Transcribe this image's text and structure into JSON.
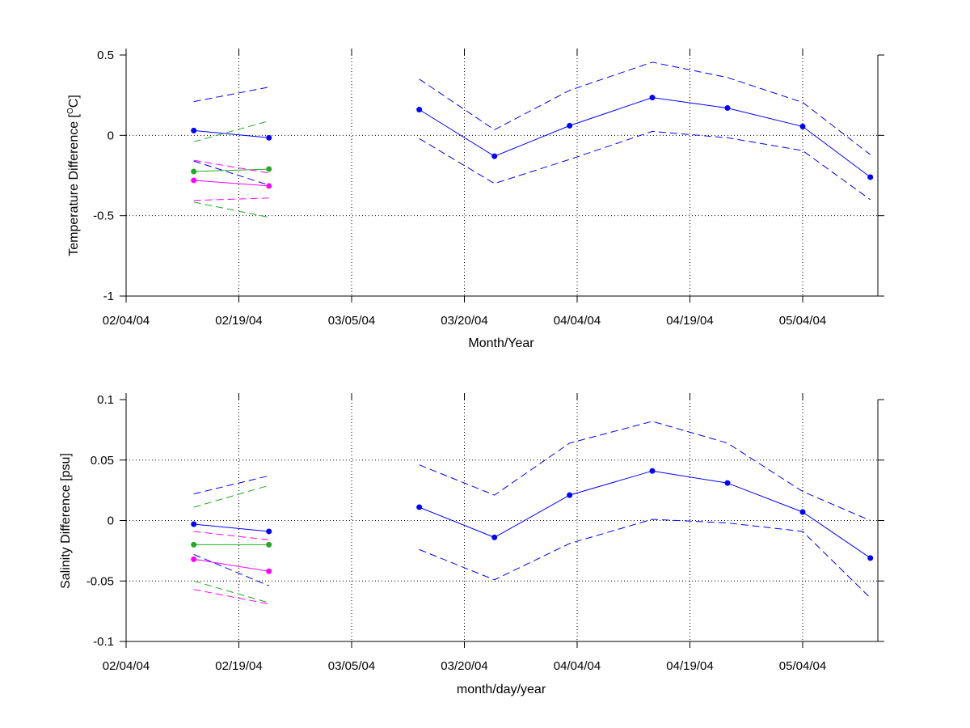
{
  "colors": {
    "blue": "#0000ff",
    "green": "#22aa22",
    "magenta": "#ff00ff",
    "axis": "#000000",
    "grid": "#000000",
    "background": "#ffffff"
  },
  "chart_data": [
    {
      "type": "line",
      "title": "",
      "xlabel": "Month/Year",
      "ylabel_main": "Temperature Difference [",
      "ylabel_sup": "O",
      "ylabel_tail": "C]",
      "xlim": [
        "2004-02-04",
        "2004-05-14"
      ],
      "ylim": [
        -1,
        0.5
      ],
      "grid": true,
      "legend": "none",
      "x_ticks": [
        "2004-02-04",
        "2004-02-19",
        "2004-03-05",
        "2004-03-20",
        "2004-04-04",
        "2004-04-19",
        "2004-05-04"
      ],
      "x_tick_labels": [
        "02/04/04",
        "02/19/04",
        "03/05/04",
        "03/20/04",
        "04/04/04",
        "04/19/04",
        "05/04/04"
      ],
      "y_ticks": [
        -1,
        -0.5,
        0,
        0.5
      ],
      "y_tick_labels": [
        "-1",
        "-0.5",
        "0",
        "0.5"
      ],
      "series": [
        {
          "color": "blue",
          "style": "solid",
          "marker": true,
          "x": [
            "2004-02-13",
            "2004-02-23"
          ],
          "y": [
            0.03,
            -0.015
          ]
        },
        {
          "color": "blue",
          "style": "dashed",
          "marker": false,
          "x": [
            "2004-02-13",
            "2004-02-23"
          ],
          "y": [
            0.21,
            0.3
          ]
        },
        {
          "color": "blue",
          "style": "dashed",
          "marker": false,
          "x": [
            "2004-02-13",
            "2004-02-23"
          ],
          "y": [
            -0.16,
            -0.31
          ]
        },
        {
          "color": "green",
          "style": "solid",
          "marker": true,
          "x": [
            "2004-02-13",
            "2004-02-23"
          ],
          "y": [
            -0.225,
            -0.21
          ]
        },
        {
          "color": "green",
          "style": "dashed",
          "marker": false,
          "x": [
            "2004-02-13",
            "2004-02-23"
          ],
          "y": [
            -0.04,
            0.09
          ]
        },
        {
          "color": "green",
          "style": "dashed",
          "marker": false,
          "x": [
            "2004-02-13",
            "2004-02-23"
          ],
          "y": [
            -0.415,
            -0.51
          ]
        },
        {
          "color": "magenta",
          "style": "solid",
          "marker": true,
          "x": [
            "2004-02-13",
            "2004-02-23"
          ],
          "y": [
            -0.28,
            -0.315
          ]
        },
        {
          "color": "magenta",
          "style": "dashed",
          "marker": false,
          "x": [
            "2004-02-13",
            "2004-02-23"
          ],
          "y": [
            -0.155,
            -0.235
          ]
        },
        {
          "color": "magenta",
          "style": "dashed",
          "marker": false,
          "x": [
            "2004-02-13",
            "2004-02-23"
          ],
          "y": [
            -0.405,
            -0.39
          ]
        },
        {
          "color": "blue",
          "style": "solid",
          "marker": true,
          "x": [
            "2004-03-14",
            "2004-03-24",
            "2004-04-03",
            "2004-04-14",
            "2004-04-24",
            "2004-05-04",
            "2004-05-13"
          ],
          "y": [
            0.16,
            -0.13,
            0.06,
            0.235,
            0.17,
            0.055,
            -0.26
          ]
        },
        {
          "color": "blue",
          "style": "dashed",
          "marker": false,
          "x": [
            "2004-03-14",
            "2004-03-24",
            "2004-04-03",
            "2004-04-14",
            "2004-04-24",
            "2004-05-04",
            "2004-05-13"
          ],
          "y": [
            0.35,
            0.035,
            0.28,
            0.455,
            0.36,
            0.205,
            -0.12
          ]
        },
        {
          "color": "blue",
          "style": "dashed",
          "marker": false,
          "x": [
            "2004-03-14",
            "2004-03-24",
            "2004-04-03",
            "2004-04-14",
            "2004-04-24",
            "2004-05-04",
            "2004-05-13"
          ],
          "y": [
            -0.02,
            -0.3,
            -0.15,
            0.025,
            -0.015,
            -0.095,
            -0.4
          ]
        }
      ]
    },
    {
      "type": "line",
      "title": "",
      "xlabel": "month/day/year",
      "ylabel_main": "Salinity Difference [psu]",
      "ylabel_sup": "",
      "ylabel_tail": "",
      "xlim": [
        "2004-02-04",
        "2004-05-14"
      ],
      "ylim": [
        -0.1,
        0.1
      ],
      "grid": true,
      "legend": "none",
      "x_ticks": [
        "2004-02-04",
        "2004-02-19",
        "2004-03-05",
        "2004-03-20",
        "2004-04-04",
        "2004-04-19",
        "2004-05-04"
      ],
      "x_tick_labels": [
        "02/04/04",
        "02/19/04",
        "03/05/04",
        "03/20/04",
        "04/04/04",
        "04/19/04",
        "05/04/04"
      ],
      "y_ticks": [
        -0.1,
        -0.05,
        0,
        0.05,
        0.1
      ],
      "y_tick_labels": [
        "-0.1",
        "-0.05",
        "0",
        "0.05",
        "0.1"
      ],
      "series": [
        {
          "color": "blue",
          "style": "solid",
          "marker": true,
          "x": [
            "2004-02-13",
            "2004-02-23"
          ],
          "y": [
            -0.003,
            -0.009
          ]
        },
        {
          "color": "blue",
          "style": "dashed",
          "marker": false,
          "x": [
            "2004-02-13",
            "2004-02-23"
          ],
          "y": [
            0.022,
            0.037
          ]
        },
        {
          "color": "blue",
          "style": "dashed",
          "marker": false,
          "x": [
            "2004-02-13",
            "2004-02-23"
          ],
          "y": [
            -0.028,
            -0.054
          ]
        },
        {
          "color": "green",
          "style": "solid",
          "marker": true,
          "x": [
            "2004-02-13",
            "2004-02-23"
          ],
          "y": [
            -0.02,
            -0.02
          ]
        },
        {
          "color": "green",
          "style": "dashed",
          "marker": false,
          "x": [
            "2004-02-13",
            "2004-02-23"
          ],
          "y": [
            0.011,
            0.029
          ]
        },
        {
          "color": "green",
          "style": "dashed",
          "marker": false,
          "x": [
            "2004-02-13",
            "2004-02-23"
          ],
          "y": [
            -0.05,
            -0.068
          ]
        },
        {
          "color": "magenta",
          "style": "solid",
          "marker": true,
          "x": [
            "2004-02-13",
            "2004-02-23"
          ],
          "y": [
            -0.032,
            -0.042
          ]
        },
        {
          "color": "magenta",
          "style": "dashed",
          "marker": false,
          "x": [
            "2004-02-13",
            "2004-02-23"
          ],
          "y": [
            -0.009,
            -0.016
          ]
        },
        {
          "color": "magenta",
          "style": "dashed",
          "marker": false,
          "x": [
            "2004-02-13",
            "2004-02-23"
          ],
          "y": [
            -0.057,
            -0.069
          ]
        },
        {
          "color": "blue",
          "style": "solid",
          "marker": true,
          "x": [
            "2004-03-14",
            "2004-03-24",
            "2004-04-03",
            "2004-04-14",
            "2004-04-24",
            "2004-05-04",
            "2004-05-13"
          ],
          "y": [
            0.011,
            -0.014,
            0.021,
            0.041,
            0.031,
            0.007,
            -0.031
          ]
        },
        {
          "color": "blue",
          "style": "dashed",
          "marker": false,
          "x": [
            "2004-03-14",
            "2004-03-24",
            "2004-04-03",
            "2004-04-14",
            "2004-04-24",
            "2004-05-04",
            "2004-05-13"
          ],
          "y": [
            0.046,
            0.021,
            0.064,
            0.082,
            0.064,
            0.024,
            0.0
          ]
        },
        {
          "color": "blue",
          "style": "dashed",
          "marker": false,
          "x": [
            "2004-03-14",
            "2004-03-24",
            "2004-04-03",
            "2004-04-14",
            "2004-04-24",
            "2004-05-04",
            "2004-05-13"
          ],
          "y": [
            -0.024,
            -0.049,
            -0.019,
            0.001,
            -0.002,
            -0.009,
            -0.064
          ]
        }
      ]
    }
  ]
}
